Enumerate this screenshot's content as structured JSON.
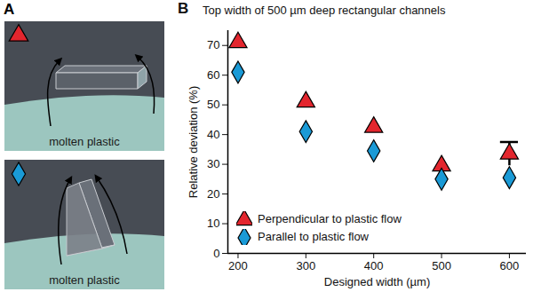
{
  "chart_data": {
    "type": "scatter",
    "panel": "B",
    "title": "Top width of 500 µm deep rectangular channels",
    "xlabel": "Designed width (µm)",
    "ylabel": "Relative deviation (%)",
    "x": [
      200,
      300,
      400,
      500,
      600
    ],
    "xlim": [
      185,
      625
    ],
    "xticks": [
      200,
      300,
      400,
      500,
      600
    ],
    "ylim": [
      0,
      75
    ],
    "yticks": [
      0,
      10,
      20,
      30,
      40,
      50,
      60,
      70
    ],
    "grid": false,
    "legend": "lower left",
    "series": [
      {
        "name": "Perpendicular to plastic flow",
        "color": "#e3262e",
        "marker": "triangle",
        "values": [
          71,
          51,
          42.5,
          29.5,
          33.5
        ],
        "errors": [
          null,
          null,
          null,
          null,
          4
        ]
      },
      {
        "name": "Parallel to plastic flow",
        "color": "#1a9ad6",
        "marker": "diamond",
        "values": [
          61,
          41,
          34.5,
          25,
          25.5
        ]
      }
    ]
  },
  "diagram": {
    "panel": "A",
    "panels": [
      {
        "marker": "triangle",
        "color": "#e3262e",
        "label": "molten plastic"
      },
      {
        "marker": "diamond",
        "color": "#1a9ad6",
        "label": "molten plastic"
      }
    ]
  }
}
